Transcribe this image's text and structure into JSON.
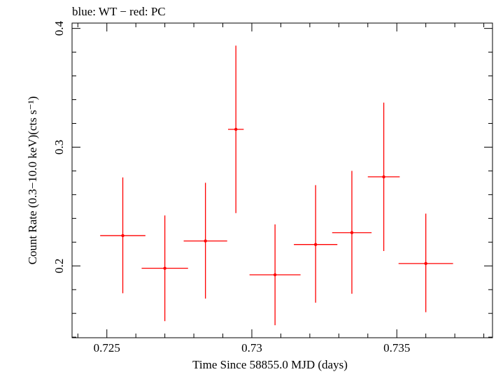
{
  "chart_data": {
    "type": "scatter",
    "title": "blue: WT − red: PC",
    "xlabel": "Time Since 58855.0 MJD (days)",
    "ylabel": "Count Rate (0.3−10.0 keV)(cts s⁻¹)",
    "xlim": [
      0.7238,
      0.7383
    ],
    "ylim": [
      0.1395,
      0.4045
    ],
    "x_ticks": [
      0.725,
      0.73,
      0.735
    ],
    "x_tick_labels": [
      "0.725",
      "0.73",
      "0.735"
    ],
    "y_ticks": [
      0.2,
      0.3,
      0.4
    ],
    "y_tick_labels": [
      "0.2",
      "0.3",
      "0.4"
    ],
    "grid": false,
    "series": [
      {
        "name": "PC",
        "color": "#ff0000",
        "points": [
          {
            "x": 0.72555,
            "y": 0.2255,
            "xerr": 0.00078,
            "ylo": 0.177,
            "yhi": 0.2745
          },
          {
            "x": 0.727,
            "y": 0.198,
            "xerr": 0.0008,
            "ylo": 0.1535,
            "yhi": 0.2425
          },
          {
            "x": 0.7284,
            "y": 0.221,
            "xerr": 0.00075,
            "ylo": 0.1725,
            "yhi": 0.27
          },
          {
            "x": 0.72945,
            "y": 0.315,
            "xerr": 0.00027,
            "ylo": 0.2445,
            "yhi": 0.3855
          },
          {
            "x": 0.7308,
            "y": 0.1925,
            "xerr": 0.00088,
            "ylo": 0.15,
            "yhi": 0.235
          },
          {
            "x": 0.7322,
            "y": 0.218,
            "xerr": 0.00075,
            "ylo": 0.169,
            "yhi": 0.268
          },
          {
            "x": 0.73345,
            "y": 0.228,
            "xerr": 0.00068,
            "ylo": 0.1765,
            "yhi": 0.28
          },
          {
            "x": 0.73455,
            "y": 0.275,
            "xerr": 0.00055,
            "ylo": 0.2125,
            "yhi": 0.3375
          },
          {
            "x": 0.736,
            "y": 0.202,
            "xerr": 0.00094,
            "ylo": 0.161,
            "yhi": 0.244
          }
        ]
      }
    ]
  }
}
